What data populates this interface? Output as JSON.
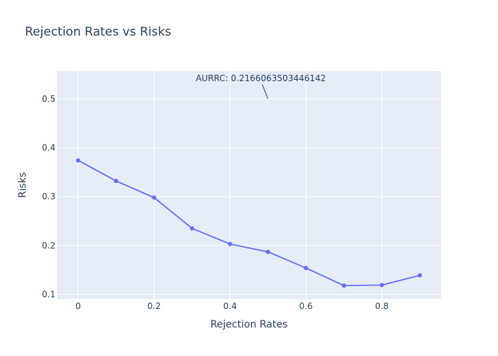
{
  "chart_data": {
    "type": "line",
    "title": "Rejection Rates vs Risks",
    "xlabel": "Rejection Rates",
    "ylabel": "Risks",
    "x": [
      0,
      0.1,
      0.2,
      0.3,
      0.4,
      0.5,
      0.6,
      0.7,
      0.8,
      0.9
    ],
    "series": [
      {
        "values": [
          0.374,
          0.332,
          0.298,
          0.235,
          0.203,
          0.187,
          0.154,
          0.118,
          0.119,
          0.139
        ],
        "color": "#636efa",
        "mode": "lines+markers"
      }
    ],
    "xlim": [
      -0.056,
      0.956
    ],
    "ylim": [
      0.0905,
      0.5565
    ],
    "xticks": [
      0,
      0.2,
      0.4,
      0.6,
      0.8
    ],
    "xtick_labels": [
      "0",
      "0.2",
      "0.4",
      "0.6",
      "0.8"
    ],
    "yticks": [
      0.1,
      0.2,
      0.3,
      0.4,
      0.5
    ],
    "ytick_labels": [
      "0.1",
      "0.2",
      "0.3",
      "0.4",
      "0.5"
    ],
    "grid": true,
    "legend": "none",
    "plot_background": "#e5ecf6",
    "annotation": {
      "text": "AURRC: 0.2166063503446142",
      "x": 0.5,
      "y": 0.5
    }
  }
}
